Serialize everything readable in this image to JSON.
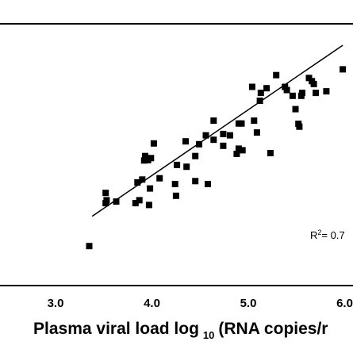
{
  "chart_data": {
    "type": "scatter",
    "title": "",
    "xlabel": {
      "prefix": "Plasma viral load log",
      "subscript": "10",
      "suffix": "(RNA copies/r"
    },
    "ylabel": "",
    "x_ticks": [
      "3.0",
      "4.0",
      "5.0",
      "6.0"
    ],
    "x_tick_values": [
      3.0,
      4.0,
      5.0,
      6.0
    ],
    "xlim": [
      2.5,
      6.0
    ],
    "ylim": [
      0,
      1
    ],
    "annotation": {
      "base": "R",
      "sup": "2",
      "rest": "= 0.7"
    },
    "trendline": {
      "x": [
        3.38,
        5.98
      ],
      "y": [
        0.265,
        0.918
      ]
    },
    "series": [
      {
        "marker": "square",
        "points": [
          [
            3.35,
            0.151
          ],
          [
            3.52,
            0.354
          ],
          [
            3.53,
            0.326
          ],
          [
            3.52,
            0.315
          ],
          [
            3.63,
            0.321
          ],
          [
            3.83,
            0.315
          ],
          [
            3.85,
            0.394
          ],
          [
            3.87,
            0.326
          ],
          [
            3.9,
            0.405
          ],
          [
            3.92,
            0.478
          ],
          [
            3.93,
            0.495
          ],
          [
            3.96,
            0.479
          ],
          [
            3.97,
            0.308
          ],
          [
            3.98,
            0.371
          ],
          [
            3.99,
            0.487
          ],
          [
            4.02,
            0.543
          ],
          [
            4.08,
            0.41
          ],
          [
            4.24,
            0.388
          ],
          [
            4.25,
            0.343
          ],
          [
            4.26,
            0.461
          ],
          [
            4.35,
            0.551
          ],
          [
            4.36,
            0.454
          ],
          [
            4.45,
            0.495
          ],
          [
            4.45,
            0.399
          ],
          [
            4.49,
            0.54
          ],
          [
            4.56,
            0.574
          ],
          [
            4.58,
            0.388
          ],
          [
            4.64,
            0.63
          ],
          [
            4.64,
            0.557
          ],
          [
            4.74,
            0.534
          ],
          [
            4.74,
            0.579
          ],
          [
            4.81,
            0.574
          ],
          [
            4.88,
            0.503
          ],
          [
            4.9,
            0.619
          ],
          [
            4.9,
            0.523
          ],
          [
            4.93,
            0.619
          ],
          [
            4.94,
            0.517
          ],
          [
            5.04,
            0.759
          ],
          [
            5.06,
            0.63
          ],
          [
            5.09,
            0.585
          ],
          [
            5.12,
            0.706
          ],
          [
            5.13,
            0.736
          ],
          [
            5.19,
            0.754
          ],
          [
            5.23,
            0.506
          ],
          [
            5.29,
            0.804
          ],
          [
            5.38,
            0.759
          ],
          [
            5.4,
            0.747
          ],
          [
            5.46,
            0.725
          ],
          [
            5.49,
            0.674
          ],
          [
            5.52,
            0.618
          ],
          [
            5.53,
            0.607
          ],
          [
            5.55,
            0.725
          ],
          [
            5.56,
            0.736
          ],
          [
            5.63,
            0.793
          ],
          [
            5.66,
            0.781
          ],
          [
            5.68,
            0.77
          ],
          [
            5.7,
            0.736
          ],
          [
            5.81,
            0.742
          ],
          [
            5.98,
            0.826
          ]
        ]
      }
    ]
  }
}
